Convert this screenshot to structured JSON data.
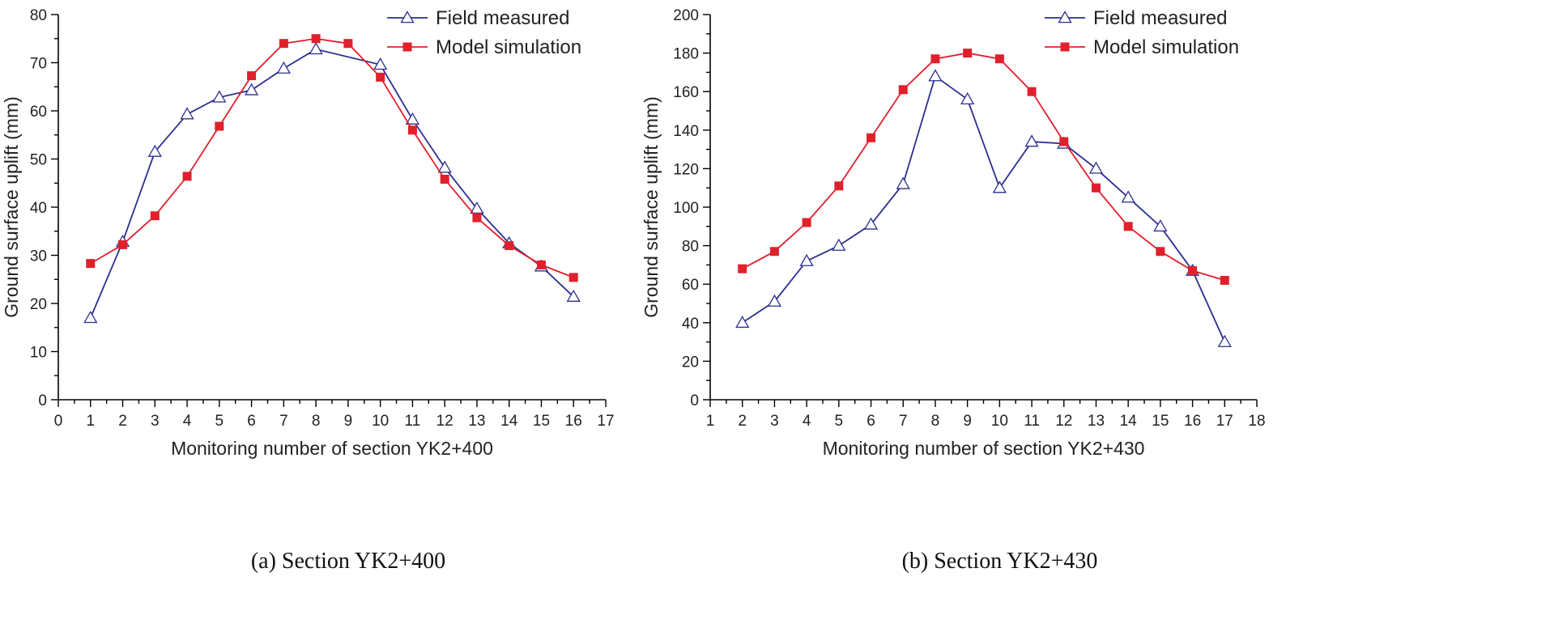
{
  "chart_data": [
    {
      "type": "line",
      "caption": "(a) Section YK2+400",
      "xlabel": "Monitoring number of section YK2+400",
      "ylabel": "Ground surface uplift (mm)",
      "xlim": [
        0,
        17
      ],
      "ylim": [
        0,
        80
      ],
      "xticks": [
        0,
        1,
        2,
        3,
        4,
        5,
        6,
        7,
        8,
        9,
        10,
        11,
        12,
        13,
        14,
        15,
        16,
        17
      ],
      "yticks": [
        0,
        10,
        20,
        30,
        40,
        50,
        60,
        70,
        80
      ],
      "legend_position": "top-right",
      "series": [
        {
          "name": "Field measured",
          "color": "#2b2f8e",
          "marker": "open-triangle",
          "x": [
            1,
            2,
            3,
            4,
            5,
            6,
            7,
            8,
            10,
            11,
            12,
            13,
            14,
            15,
            16
          ],
          "y": [
            17.0,
            32.8,
            51.5,
            59.3,
            62.8,
            64.3,
            68.8,
            72.8,
            69.6,
            58.2,
            48.2,
            39.7,
            32.5,
            27.7,
            21.4
          ]
        },
        {
          "name": "Model simulation",
          "color": "#e0202c",
          "marker": "filled-square",
          "x": [
            1,
            2,
            3,
            4,
            5,
            6,
            7,
            8,
            9,
            10,
            11,
            12,
            13,
            14,
            15,
            16
          ],
          "y": [
            28.3,
            32.2,
            38.2,
            46.4,
            56.8,
            67.3,
            74.0,
            75.0,
            74.0,
            67.0,
            56.0,
            45.8,
            37.8,
            32.0,
            28.0,
            25.4
          ]
        }
      ]
    },
    {
      "type": "line",
      "caption": "(b) Section YK2+430",
      "xlabel": "Monitoring number of section YK2+430",
      "ylabel": "Ground surface uplift (mm)",
      "xlim": [
        1,
        18
      ],
      "ylim": [
        0,
        200
      ],
      "xticks": [
        1,
        2,
        3,
        4,
        5,
        6,
        7,
        8,
        9,
        10,
        11,
        12,
        13,
        14,
        15,
        16,
        17,
        18
      ],
      "yticks": [
        0,
        20,
        40,
        60,
        80,
        100,
        120,
        140,
        160,
        180,
        200
      ],
      "legend_position": "top-right",
      "series": [
        {
          "name": "Field measured",
          "color": "#2b2f8e",
          "marker": "open-triangle",
          "x": [
            2,
            3,
            4,
            5,
            6,
            7,
            8,
            9,
            10,
            11,
            12,
            13,
            14,
            15,
            16,
            17
          ],
          "y": [
            40,
            51,
            72,
            80,
            91,
            112,
            168,
            156,
            110,
            134,
            133,
            120,
            105,
            90,
            67,
            30
          ]
        },
        {
          "name": "Model simulation",
          "color": "#e0202c",
          "marker": "filled-square",
          "x": [
            2,
            3,
            4,
            5,
            6,
            7,
            8,
            9,
            10,
            11,
            12,
            13,
            14,
            15,
            16,
            17
          ],
          "y": [
            68,
            77,
            92,
            111,
            136,
            161,
            177,
            180,
            177,
            160,
            134,
            110,
            90,
            77,
            67,
            62
          ]
        }
      ]
    }
  ]
}
